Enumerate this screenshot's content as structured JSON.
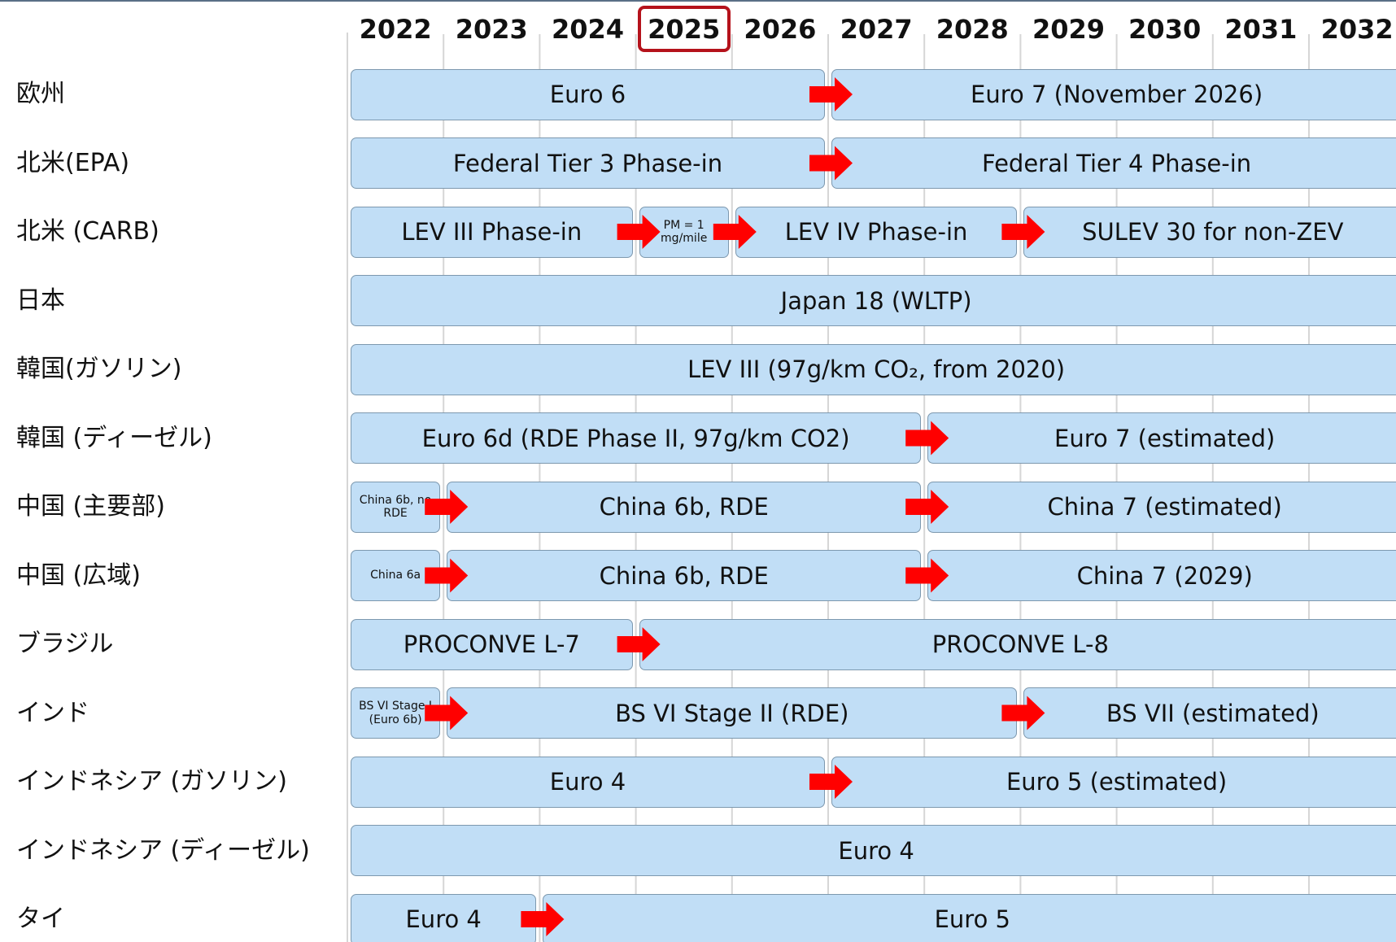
{
  "years": [
    2022,
    2023,
    2024,
    2025,
    2026,
    2027,
    2028,
    2029,
    2030,
    2031,
    2032
  ],
  "highlight_year": 2025,
  "rows": [
    {
      "label": "欧州",
      "phases": [
        {
          "label": "Euro 6",
          "start": 2022,
          "end": 2026
        },
        {
          "label": "Euro 7 (November 2026)",
          "start": 2027,
          "end": 2032
        }
      ]
    },
    {
      "label": "北米(EPA)",
      "phases": [
        {
          "label": "Federal Tier 3 Phase-in",
          "start": 2022,
          "end": 2026
        },
        {
          "label": "Federal Tier 4 Phase-in",
          "start": 2027,
          "end": 2032
        }
      ]
    },
    {
      "label": "北米 (CARB)",
      "phases": [
        {
          "label": "LEV III Phase-in",
          "start": 2022,
          "end": 2024
        },
        {
          "label": "PM = 1 mg/mile",
          "start": 2025,
          "end": 2025
        },
        {
          "label": "LEV IV Phase-in",
          "start": 2026,
          "end": 2028
        },
        {
          "label": "SULEV 30 for non-ZEV",
          "start": 2029,
          "end": 2032
        }
      ]
    },
    {
      "label": "日本",
      "phases": [
        {
          "label": "Japan 18 (WLTP)",
          "start": 2022,
          "end": 2032
        }
      ]
    },
    {
      "label": "韓国(ガソリン)",
      "phases": [
        {
          "label": "LEV III (97g/km CO₂, from 2020)",
          "start": 2022,
          "end": 2032
        }
      ]
    },
    {
      "label": "韓国 (ディーゼル)",
      "phases": [
        {
          "label": "Euro 6d (RDE Phase II, 97g/km CO2)",
          "start": 2022,
          "end": 2027
        },
        {
          "label": "Euro 7 (estimated)",
          "start": 2028,
          "end": 2032
        }
      ]
    },
    {
      "label": "中国 (主要部)",
      "phases": [
        {
          "label": "China 6b, no RDE",
          "start": 2022,
          "end": 2022
        },
        {
          "label": "China 6b, RDE",
          "start": 2023,
          "end": 2027
        },
        {
          "label": "China 7 (estimated)",
          "start": 2028,
          "end": 2032
        }
      ]
    },
    {
      "label": "中国 (広域)",
      "phases": [
        {
          "label": "China 6a",
          "start": 2022,
          "end": 2022
        },
        {
          "label": "China 6b, RDE",
          "start": 2023,
          "end": 2027
        },
        {
          "label": "China 7 (2029)",
          "start": 2028,
          "end": 2032
        }
      ]
    },
    {
      "label": "ブラジル",
      "phases": [
        {
          "label": "PROCONVE L-7",
          "start": 2022,
          "end": 2024
        },
        {
          "label": "PROCONVE L-8",
          "start": 2025,
          "end": 2032
        }
      ]
    },
    {
      "label": "インド",
      "phases": [
        {
          "label": "BS VI Stage I (Euro 6b)",
          "start": 2022,
          "end": 2022
        },
        {
          "label": "BS VI Stage II (RDE)",
          "start": 2023,
          "end": 2028
        },
        {
          "label": "BS VII (estimated)",
          "start": 2029,
          "end": 2032
        }
      ]
    },
    {
      "label": "インドネシア (ガソリン)",
      "phases": [
        {
          "label": "Euro 4",
          "start": 2022,
          "end": 2026
        },
        {
          "label": "Euro 5 (estimated)",
          "start": 2027,
          "end": 2032
        }
      ]
    },
    {
      "label": "インドネシア (ディーゼル)",
      "phases": [
        {
          "label": "Euro 4",
          "start": 2022,
          "end": 2032
        }
      ]
    },
    {
      "label": "タイ",
      "phases": [
        {
          "label": "Euro 4",
          "start": 2022,
          "end": 2023
        },
        {
          "label": "Euro 5",
          "start": 2024,
          "end": 2032
        }
      ]
    }
  ]
}
